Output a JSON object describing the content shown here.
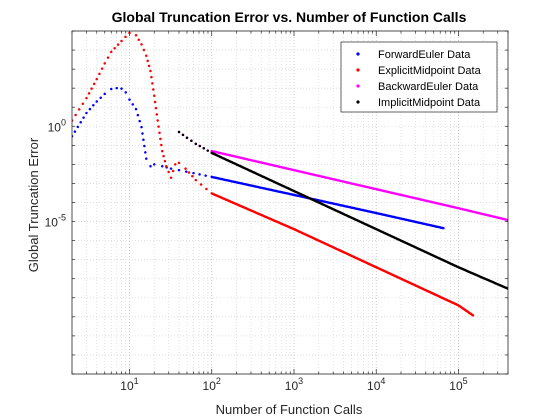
{
  "chart_data": {
    "type": "scatter",
    "title": "Global Truncation Error vs. Number of Function Calls",
    "xlabel": "Number of Function Calls",
    "ylabel": "Global Truncation Error",
    "x_scale": "log",
    "y_scale": "log",
    "xlim": [
      2,
      400000
    ],
    "ylim": [
      1e-13,
      100000.0
    ],
    "grid": "on (major and minor, dotted)",
    "legend_position": "top-right",
    "x_ticks": [
      {
        "base": "10",
        "exp": "1",
        "value": 10
      },
      {
        "base": "10",
        "exp": "2",
        "value": 100
      },
      {
        "base": "10",
        "exp": "3",
        "value": 1000
      },
      {
        "base": "10",
        "exp": "4",
        "value": 10000
      },
      {
        "base": "10",
        "exp": "5",
        "value": 100000
      }
    ],
    "y_ticks": [
      {
        "base": "10",
        "exp": "0",
        "value": 1
      },
      {
        "base": "10",
        "exp": "-5",
        "value": 1e-05
      }
    ],
    "series": [
      {
        "name": "ForwardEuler Data",
        "color": "#0000FF",
        "points": [
          [
            2,
            0.3
          ],
          [
            3,
            5
          ],
          [
            4,
            20
          ],
          [
            5,
            50
          ],
          [
            6,
            90
          ],
          [
            7,
            100
          ],
          [
            8,
            95
          ],
          [
            9,
            60
          ],
          [
            10,
            25
          ],
          [
            12,
            8
          ],
          [
            14,
            0.9
          ],
          [
            16,
            0.02
          ],
          [
            18,
            0.008
          ],
          [
            20,
            0.01
          ],
          [
            25,
            0.008
          ],
          [
            32,
            0.006
          ],
          [
            40,
            0.005
          ],
          [
            60,
            0.0035
          ],
          [
            100,
            0.0022
          ],
          [
            1000,
            0.00025
          ],
          [
            10000,
            2.8e-05
          ],
          [
            65536,
            4.5e-06
          ]
        ]
      },
      {
        "name": "ExplicitMidpoint Data",
        "color": "#FF0000",
        "points": [
          [
            2,
            2
          ],
          [
            3,
            30
          ],
          [
            4,
            300
          ],
          [
            5,
            2000
          ],
          [
            6,
            8000
          ],
          [
            8,
            30000
          ],
          [
            10,
            80000
          ],
          [
            12,
            60000
          ],
          [
            14,
            20000
          ],
          [
            16,
            5000
          ],
          [
            18,
            800
          ],
          [
            20,
            40
          ],
          [
            22,
            2
          ],
          [
            25,
            0.05
          ],
          [
            28,
            0.008
          ],
          [
            32,
            0.002
          ],
          [
            36,
            0.01
          ],
          [
            40,
            0.012
          ],
          [
            48,
            0.006
          ],
          [
            64,
            0.0015
          ],
          [
            100,
            0.0003
          ],
          [
            1000,
            4e-06
          ],
          [
            10000,
            4e-08
          ],
          [
            100000,
            4e-10
          ],
          [
            150000,
            1.2e-10
          ]
        ]
      },
      {
        "name": "BackwardEuler Data",
        "color": "#FF00FF",
        "points": [
          [
            40,
            0.5
          ],
          [
            50,
            0.25
          ],
          [
            64,
            0.12
          ],
          [
            80,
            0.07
          ],
          [
            100,
            0.05
          ],
          [
            1000,
            0.005
          ],
          [
            10000,
            0.0005
          ],
          [
            100000,
            5e-05
          ],
          [
            400000,
            1.2e-05
          ]
        ]
      },
      {
        "name": "ImplicitMidpoint Data",
        "color": "#000000",
        "points": [
          [
            40,
            0.5
          ],
          [
            50,
            0.25
          ],
          [
            64,
            0.12
          ],
          [
            80,
            0.07
          ],
          [
            100,
            0.04
          ],
          [
            1000,
            0.0004
          ],
          [
            10000,
            4e-06
          ],
          [
            100000,
            4e-08
          ],
          [
            400000,
            3e-09
          ]
        ]
      }
    ]
  }
}
